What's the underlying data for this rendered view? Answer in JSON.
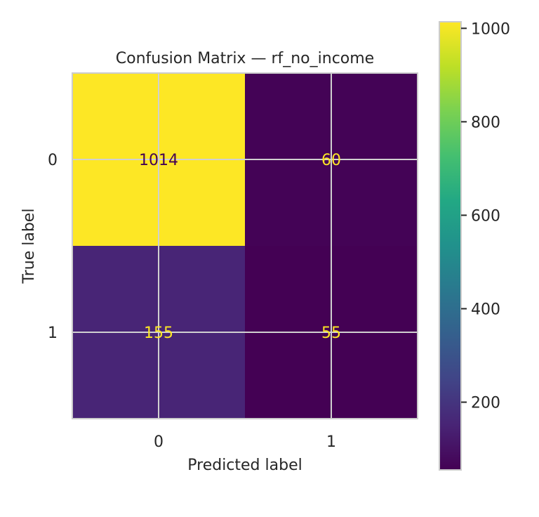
{
  "chart_data": {
    "type": "heatmap",
    "title": "Confusion Matrix — rf_no_income",
    "xlabel": "Predicted label",
    "ylabel": "True label",
    "x_categories": [
      "0",
      "1"
    ],
    "y_categories": [
      "0",
      "1"
    ],
    "values": [
      [
        1014,
        60
      ],
      [
        155,
        55
      ]
    ],
    "colormap": "viridis",
    "color_range": [
      55,
      1014
    ],
    "colorbar_ticks": [
      200,
      400,
      600,
      800,
      1000
    ],
    "grid": true,
    "annotation_color_dark": "#440154",
    "annotation_color_light": "#fde725"
  }
}
